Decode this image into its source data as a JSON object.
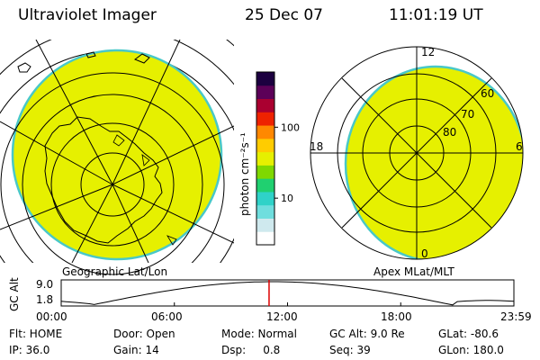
{
  "header": {
    "instrument": "Ultraviolet Imager",
    "date": "25 Dec 07",
    "time": "11:01:19 UT"
  },
  "colors": {
    "fill": "#e6f000",
    "edge": "#49c8c8",
    "timeline_marker": "#dd0000"
  },
  "left_panel": {
    "caption": "Geographic Lat/Lon",
    "content": "south-polar-map-with-coastline"
  },
  "right_panel": {
    "caption": "Apex MLat/MLT",
    "mlt_labels": {
      "top": "12",
      "left": "18",
      "right": "6",
      "bottom": "0"
    },
    "lat_labels": [
      "60",
      "70",
      "80"
    ]
  },
  "colorbar": {
    "unit_label": "photon cm⁻²s⁻¹",
    "ticks": [
      {
        "label": "100",
        "value": 100
      },
      {
        "label": "10",
        "value": 10
      }
    ],
    "scale": "log",
    "range": [
      2.2,
      600
    ],
    "colors": [
      "#ffffff",
      "#cfe9ee",
      "#6fdede",
      "#2fd2c8",
      "#20d070",
      "#7fd800",
      "#e6f000",
      "#ffcc00",
      "#ff8800",
      "#ee2200",
      "#aa0030",
      "#5c0058",
      "#1c0040"
    ]
  },
  "timeline": {
    "label": "GC Alt",
    "y_max_label": "9.0",
    "y_min_label": "1.8",
    "ticks": [
      "00:00",
      "06:00",
      "12:00",
      "18:00",
      "23:59"
    ],
    "current_time_hours": 11.02
  },
  "info_rows": [
    [
      {
        "text": "Flt: HOME"
      },
      {
        "text": "Door: Open"
      },
      {
        "text": "Mode: Normal"
      },
      {
        "text": "GC Alt: 9.0 Re"
      },
      {
        "text": "GLat: -80.6"
      }
    ],
    [
      {
        "text": "IP: 36.0"
      },
      {
        "text": "Gain: 14"
      },
      {
        "text": "Dsp:     0.8"
      },
      {
        "text": "Seq: 39"
      },
      {
        "text": "GLon: 180.0"
      }
    ]
  ]
}
